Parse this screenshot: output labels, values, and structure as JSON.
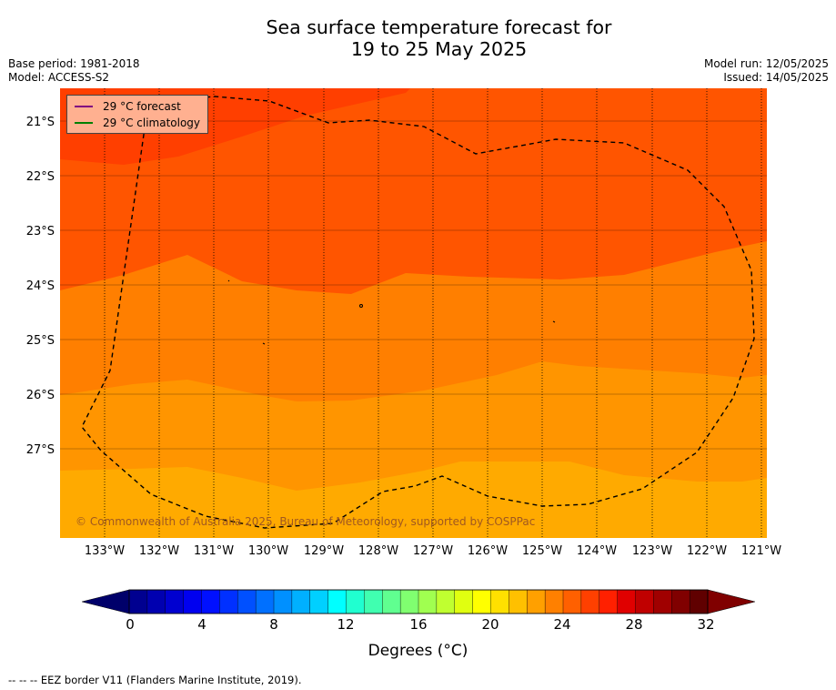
{
  "title_line1": "Sea surface temperature forecast for",
  "title_line2": "19 to 25 May 2025",
  "base_period": "Base period: 1981-2018",
  "model": "Model: ACCESS-S2",
  "model_run": "Model run: 12/05/2025",
  "issued": "Issued: 14/05/2025",
  "lat_labels": [
    "21°S",
    "22°S",
    "23°S",
    "24°S",
    "25°S",
    "26°S",
    "27°S"
  ],
  "lon_labels": [
    "133°W",
    "132°W",
    "131°W",
    "130°W",
    "129°W",
    "128°W",
    "127°W",
    "126°W",
    "125°W",
    "124°W",
    "123°W",
    "122°W",
    "121°W"
  ],
  "legend": {
    "forecast": "29 °C  forecast",
    "climatology": "29 °C  climatology",
    "forecast_color": "#800080",
    "climatology_color": "#008000"
  },
  "copyright": "© Commonwealth of Australia 2025, Bureau of Meteorology, supported by COSPPac",
  "colorbar": {
    "ticks": [
      "0",
      "4",
      "8",
      "12",
      "16",
      "20",
      "24",
      "28",
      "32"
    ],
    "title": "Degrees (°C)",
    "colors": [
      "#000090",
      "#0000b0",
      "#0000d0",
      "#0000f0",
      "#0010ff",
      "#0030ff",
      "#0050ff",
      "#0070ff",
      "#0090ff",
      "#00b0ff",
      "#00d0ff",
      "#00ffff",
      "#20ffd0",
      "#40ffb0",
      "#60ff90",
      "#80ff70",
      "#a0ff50",
      "#c0ff30",
      "#e0ff10",
      "#ffff00",
      "#ffe000",
      "#ffc000",
      "#ffa000",
      "#ff8000",
      "#ff6000",
      "#ff4000",
      "#ff2000",
      "#e00000",
      "#c00000",
      "#a00000",
      "#800000",
      "#600000"
    ]
  },
  "footer": "-- -- -- EEZ border V11 (Flanders Marine Institute, 2019).",
  "map_colors": {
    "band_24_25": "#ffaa00",
    "band_25_26": "#ff9500",
    "band_26_27": "#ff7f00",
    "band_27_28": "#ff6a00",
    "band_28_29": "#ff5500",
    "band_29_30": "#ff3f00"
  }
}
